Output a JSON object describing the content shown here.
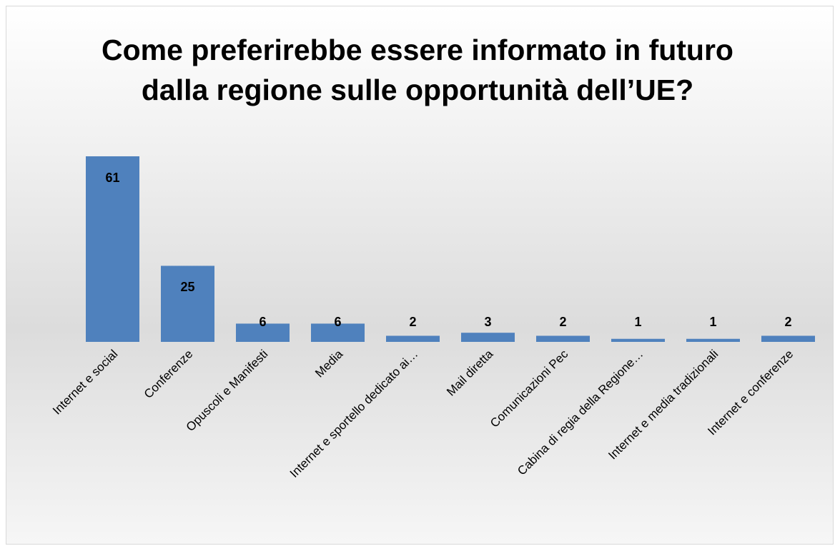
{
  "chart_data": {
    "type": "bar",
    "title": "Come preferirebbe essere informato in futuro dalla regione sulle opportunità dell’UE?",
    "categories": [
      "Internet e social",
      "Conferenze",
      "Opuscoli e Manifesti",
      "Media",
      "Internet e sportello dedicato ai…",
      "Mail diretta",
      "Comunicazioni Pec",
      "Cabina di regia della Regione…",
      "Internet e media tradizionali",
      "Internet e conferenze"
    ],
    "values": [
      61,
      25,
      6,
      6,
      2,
      3,
      2,
      1,
      1,
      2
    ],
    "color": "#4f81bd"
  }
}
